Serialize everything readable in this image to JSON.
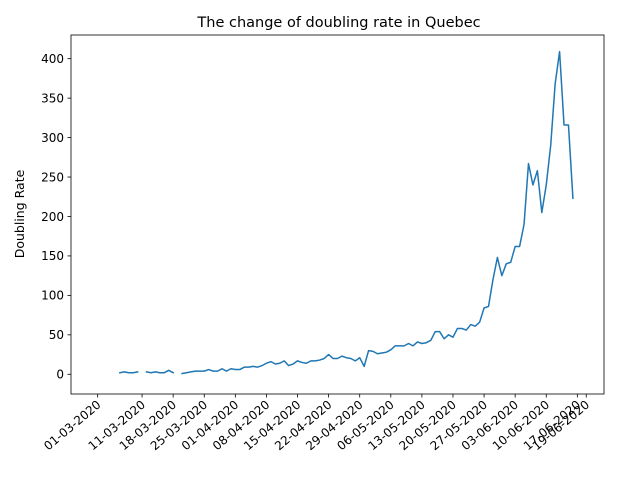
{
  "chart_data": {
    "type": "line",
    "title": "The change of doubling rate in Quebec",
    "xlabel": "",
    "ylabel": "Doubling Rate",
    "line_color": "#1f77b4",
    "grid": false,
    "legend": "none",
    "xlim": [
      "2020-02-24",
      "2020-06-23"
    ],
    "ylim": [
      -25,
      430
    ],
    "yticks": [
      0,
      50,
      100,
      150,
      200,
      250,
      300,
      350,
      400
    ],
    "xticks": [
      {
        "date": "2020-03-01",
        "label": "01-03-2020"
      },
      {
        "date": "2020-03-11",
        "label": "11-03-2020"
      },
      {
        "date": "2020-03-18",
        "label": "18-03-2020"
      },
      {
        "date": "2020-03-25",
        "label": "25-03-2020"
      },
      {
        "date": "2020-04-01",
        "label": "01-04-2020"
      },
      {
        "date": "2020-04-08",
        "label": "08-04-2020"
      },
      {
        "date": "2020-04-15",
        "label": "15-04-2020"
      },
      {
        "date": "2020-04-22",
        "label": "22-04-2020"
      },
      {
        "date": "2020-04-29",
        "label": "29-04-2020"
      },
      {
        "date": "2020-05-06",
        "label": "06-05-2020"
      },
      {
        "date": "2020-05-13",
        "label": "13-05-2020"
      },
      {
        "date": "2020-05-20",
        "label": "20-05-2020"
      },
      {
        "date": "2020-05-27",
        "label": "27-05-2020"
      },
      {
        "date": "2020-06-03",
        "label": "03-06-2020"
      },
      {
        "date": "2020-06-10",
        "label": "10-06-2020"
      },
      {
        "date": "2020-06-17",
        "label": "17-06-2020"
      },
      {
        "date": "2020-06-19",
        "label": "19-06-2020"
      }
    ],
    "series": [
      {
        "name": "",
        "segments": [
          [
            [
              "2020-03-06",
              2
            ],
            [
              "2020-03-07",
              3
            ],
            [
              "2020-03-08",
              2
            ],
            [
              "2020-03-09",
              2
            ],
            [
              "2020-03-10",
              3
            ]
          ],
          [
            [
              "2020-03-12",
              3
            ],
            [
              "2020-03-13",
              2
            ],
            [
              "2020-03-14",
              3
            ],
            [
              "2020-03-15",
              2
            ],
            [
              "2020-03-16",
              2
            ],
            [
              "2020-03-17",
              5
            ],
            [
              "2020-03-18",
              2
            ]
          ],
          [
            [
              "2020-03-20",
              1
            ],
            [
              "2020-03-21",
              2
            ],
            [
              "2020-03-22",
              3
            ],
            [
              "2020-03-23",
              4
            ],
            [
              "2020-03-24",
              4
            ],
            [
              "2020-03-25",
              4
            ],
            [
              "2020-03-26",
              6
            ],
            [
              "2020-03-27",
              4
            ],
            [
              "2020-03-28",
              4
            ],
            [
              "2020-03-29",
              7
            ],
            [
              "2020-03-30",
              4
            ],
            [
              "2020-03-31",
              7
            ],
            [
              "2020-04-01",
              6
            ],
            [
              "2020-04-02",
              6
            ],
            [
              "2020-04-03",
              9
            ],
            [
              "2020-04-04",
              9
            ],
            [
              "2020-04-05",
              10
            ],
            [
              "2020-04-06",
              9
            ],
            [
              "2020-04-07",
              11
            ],
            [
              "2020-04-08",
              14
            ],
            [
              "2020-04-09",
              16
            ],
            [
              "2020-04-10",
              13
            ],
            [
              "2020-04-11",
              14
            ],
            [
              "2020-04-12",
              17
            ],
            [
              "2020-04-13",
              11
            ],
            [
              "2020-04-14",
              13
            ],
            [
              "2020-04-15",
              17
            ],
            [
              "2020-04-16",
              15
            ],
            [
              "2020-04-17",
              14
            ],
            [
              "2020-04-18",
              17
            ],
            [
              "2020-04-19",
              17
            ],
            [
              "2020-04-20",
              18
            ],
            [
              "2020-04-21",
              20
            ],
            [
              "2020-04-22",
              25
            ],
            [
              "2020-04-23",
              20
            ],
            [
              "2020-04-24",
              20
            ],
            [
              "2020-04-25",
              23
            ],
            [
              "2020-04-26",
              21
            ],
            [
              "2020-04-27",
              20
            ],
            [
              "2020-04-28",
              17
            ],
            [
              "2020-04-29",
              21
            ],
            [
              "2020-04-30",
              10
            ],
            [
              "2020-05-01",
              30
            ],
            [
              "2020-05-02",
              29
            ],
            [
              "2020-05-03",
              26
            ],
            [
              "2020-05-04",
              27
            ],
            [
              "2020-05-05",
              28
            ],
            [
              "2020-05-06",
              31
            ],
            [
              "2020-05-07",
              36
            ],
            [
              "2020-05-08",
              36
            ],
            [
              "2020-05-09",
              36
            ],
            [
              "2020-05-10",
              39
            ],
            [
              "2020-05-11",
              36
            ],
            [
              "2020-05-12",
              41
            ],
            [
              "2020-05-13",
              39
            ],
            [
              "2020-05-14",
              40
            ],
            [
              "2020-05-15",
              43
            ],
            [
              "2020-05-16",
              54
            ],
            [
              "2020-05-17",
              54
            ],
            [
              "2020-05-18",
              45
            ],
            [
              "2020-05-19",
              50
            ],
            [
              "2020-05-20",
              47
            ],
            [
              "2020-05-21",
              58
            ],
            [
              "2020-05-22",
              58
            ],
            [
              "2020-05-23",
              56
            ],
            [
              "2020-05-24",
              63
            ],
            [
              "2020-05-25",
              61
            ],
            [
              "2020-05-26",
              66
            ],
            [
              "2020-05-27",
              84
            ],
            [
              "2020-05-28",
              86
            ],
            [
              "2020-05-29",
              120
            ],
            [
              "2020-05-30",
              148
            ],
            [
              "2020-05-31",
              125
            ],
            [
              "2020-06-01",
              140
            ],
            [
              "2020-06-02",
              142
            ],
            [
              "2020-06-03",
              162
            ],
            [
              "2020-06-04",
              162
            ],
            [
              "2020-06-05",
              190
            ],
            [
              "2020-06-06",
              267
            ],
            [
              "2020-06-07",
              240
            ],
            [
              "2020-06-08",
              258
            ],
            [
              "2020-06-09",
              205
            ],
            [
              "2020-06-10",
              240
            ],
            [
              "2020-06-11",
              290
            ],
            [
              "2020-06-12",
              368
            ],
            [
              "2020-06-13",
              409
            ],
            [
              "2020-06-14",
              316
            ],
            [
              "2020-06-15",
              316
            ],
            [
              "2020-06-16",
              223
            ]
          ]
        ]
      }
    ]
  }
}
